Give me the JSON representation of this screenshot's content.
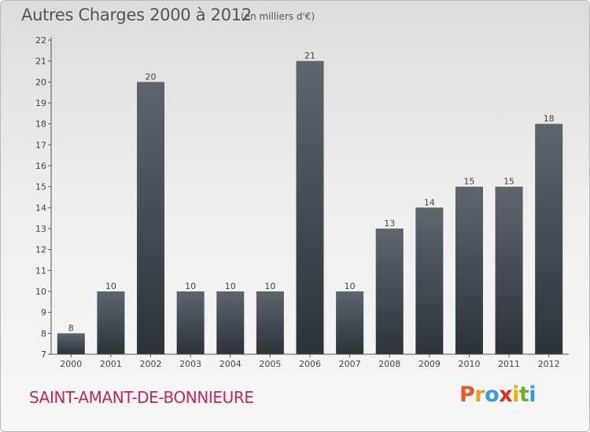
{
  "header": {
    "title": "Autres Charges 2000 à 2012",
    "subtitle": "(en milliers d'€)"
  },
  "footer": {
    "place": "SAINT-AMANT-DE-BONNIEURE"
  },
  "brand": {
    "letters": [
      {
        "ch": "P",
        "color": "#e05a2a"
      },
      {
        "ch": "r",
        "color": "#e0a020"
      },
      {
        "ch": "o",
        "color": "#3a9ad9"
      },
      {
        "ch": "x",
        "color": "#d8321e"
      },
      {
        "ch": "i",
        "color": "#f2a900"
      },
      {
        "ch": "t",
        "color": "#6bb23a"
      },
      {
        "ch": "i",
        "color": "#3a9ad9"
      }
    ]
  },
  "chart_data": {
    "type": "bar",
    "title": "Autres Charges 2000 à 2012",
    "subtitle": "(en milliers d'€)",
    "categories": [
      "2000",
      "2001",
      "2002",
      "2003",
      "2004",
      "2005",
      "2006",
      "2007",
      "2008",
      "2009",
      "2010",
      "2011",
      "2012"
    ],
    "values": [
      8,
      10,
      20,
      10,
      10,
      10,
      21,
      10,
      13,
      14,
      15,
      15,
      18
    ],
    "ylim": [
      7,
      22
    ],
    "yticks": [
      7,
      8,
      9,
      10,
      11,
      12,
      13,
      14,
      15,
      16,
      17,
      18,
      19,
      20,
      21,
      22
    ],
    "grid": false,
    "legend": "none",
    "colors": {
      "bar_top": "#5d6670",
      "bar_bottom": "#2b323a",
      "axis": "#555555",
      "label": "#444444"
    }
  }
}
